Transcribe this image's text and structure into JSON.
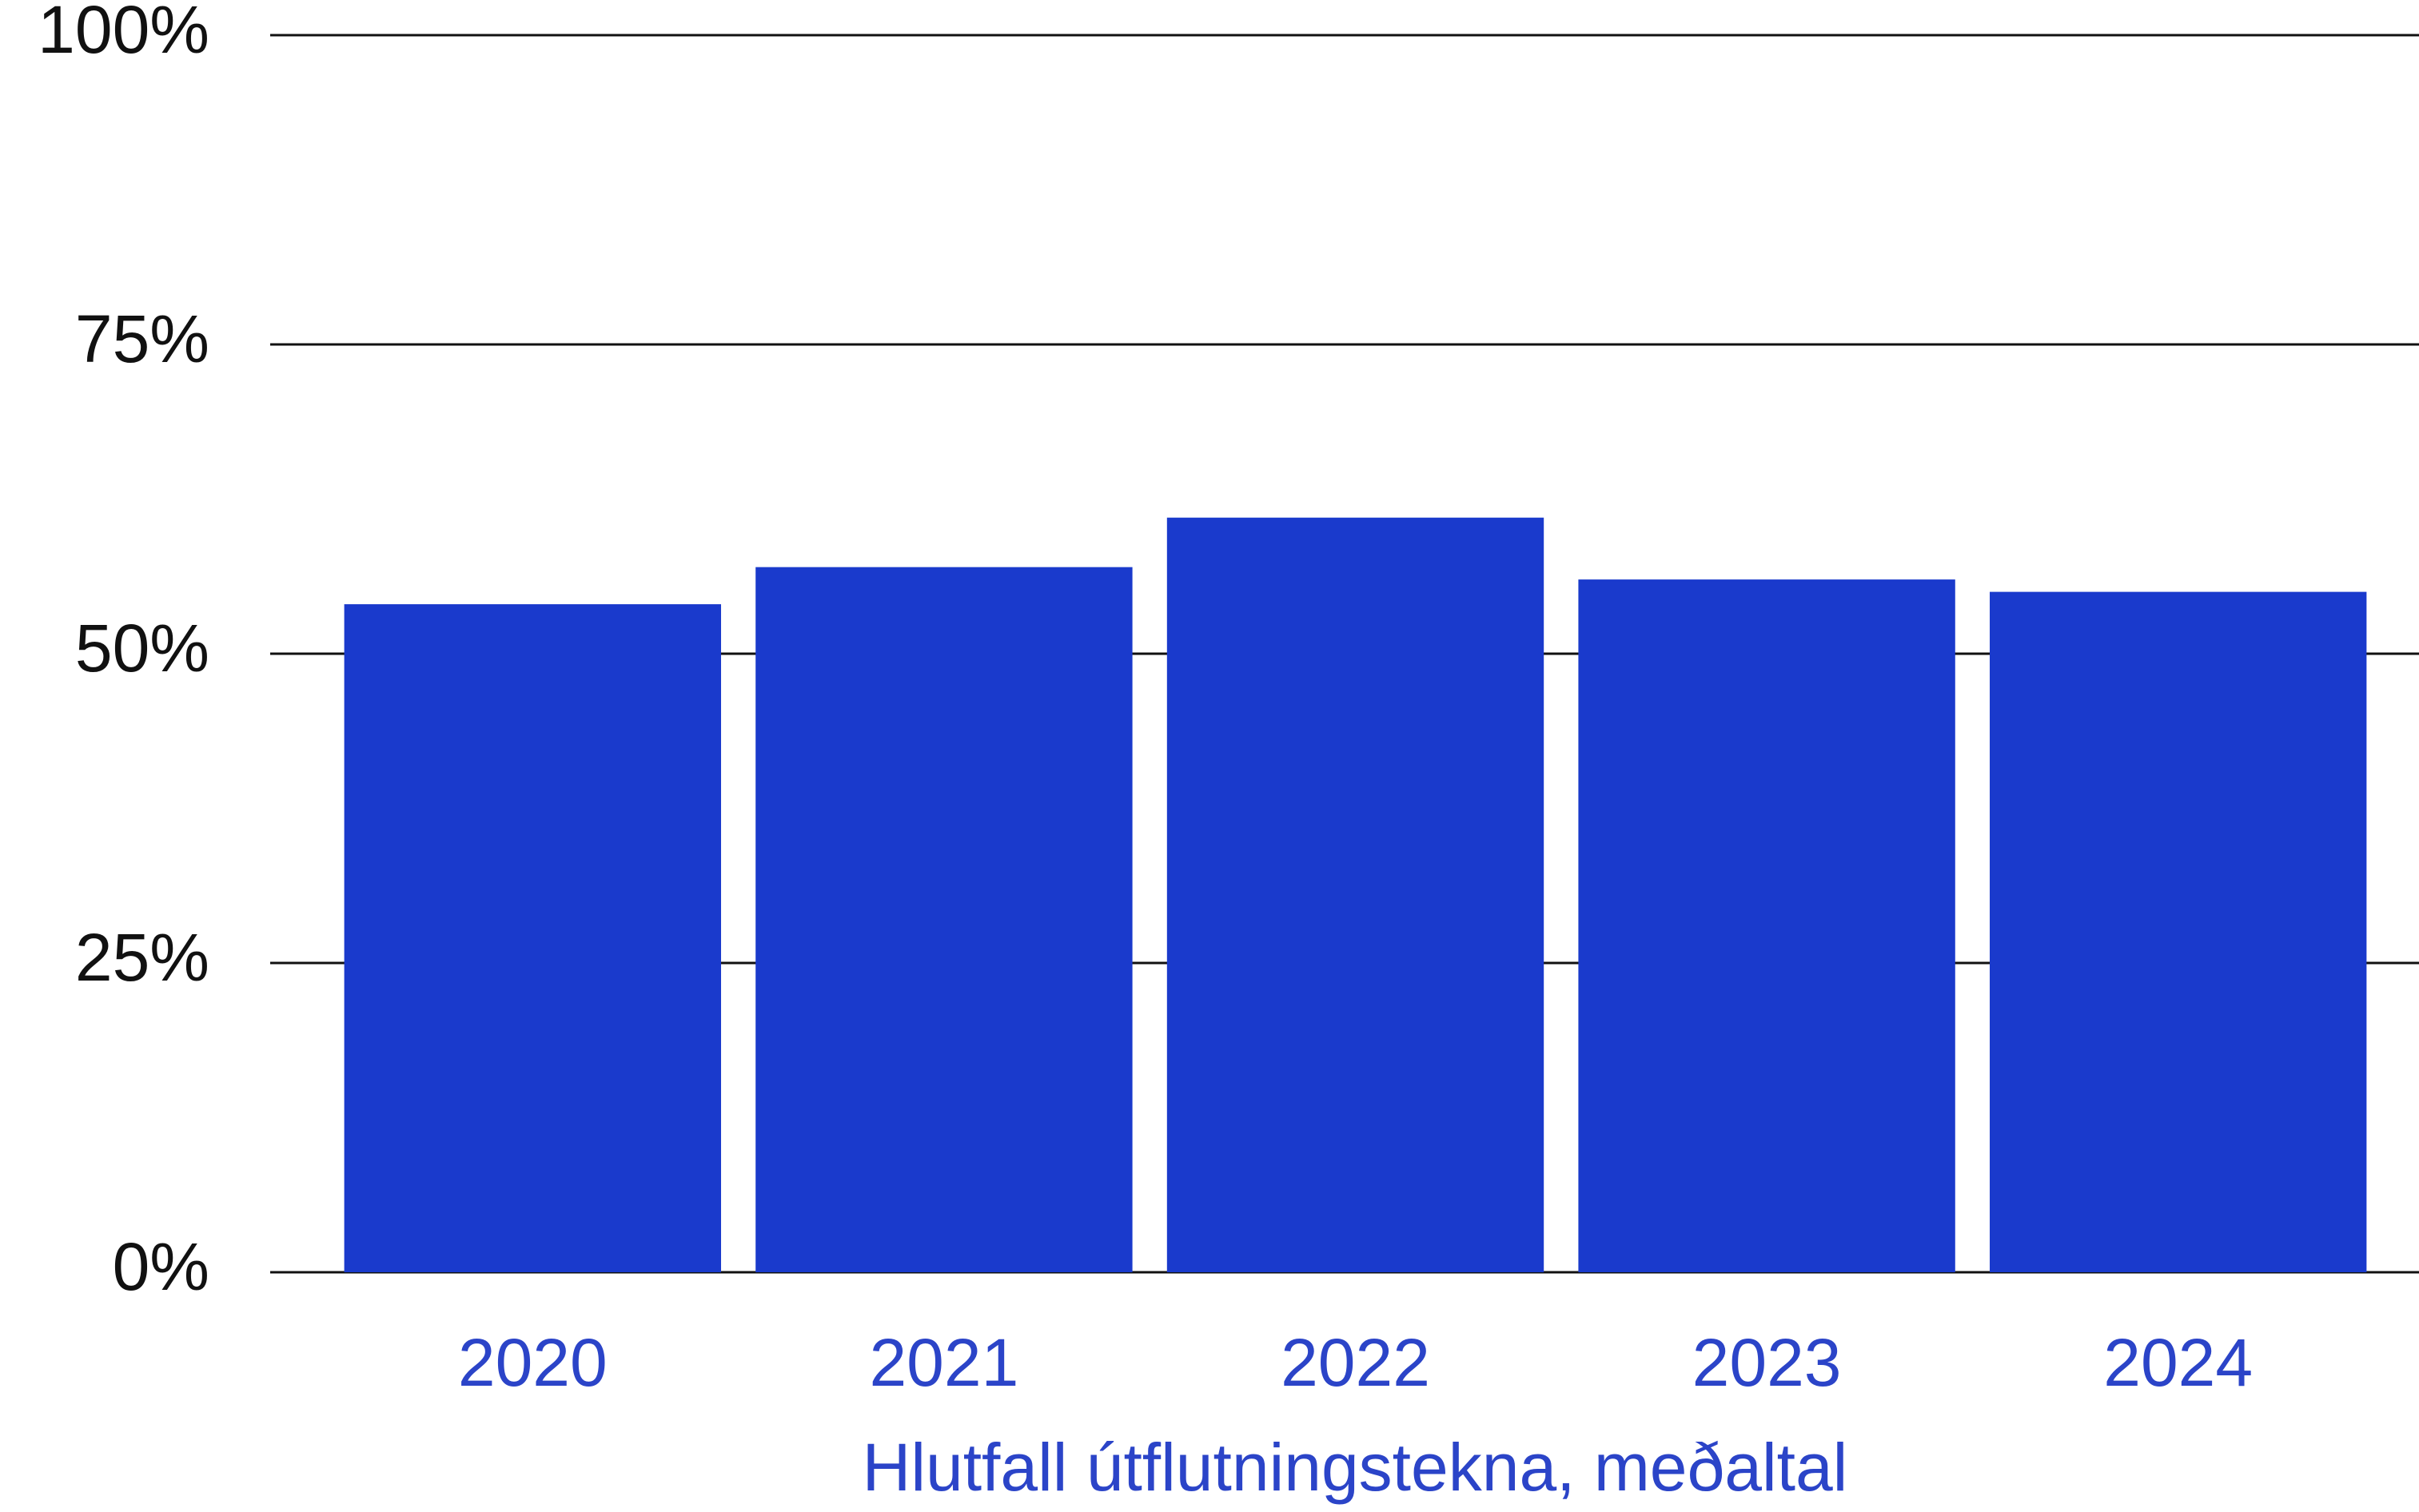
{
  "chart_data": {
    "type": "bar",
    "xlabel": "Hlutfall útflutningstekna, meðaltal",
    "categories": [
      "2020",
      "2021",
      "2022",
      "2023",
      "2024"
    ],
    "values": [
      54,
      57,
      61,
      56,
      55
    ],
    "color": "#1a3acc",
    "ylim": [
      0,
      100
    ],
    "yticks": [
      {
        "value": 0,
        "label": "0%"
      },
      {
        "value": 25,
        "label": "25%"
      },
      {
        "value": 50,
        "label": "50%"
      },
      {
        "value": 75,
        "label": "75%"
      },
      {
        "value": 100,
        "label": "100%"
      }
    ],
    "grid": true
  }
}
